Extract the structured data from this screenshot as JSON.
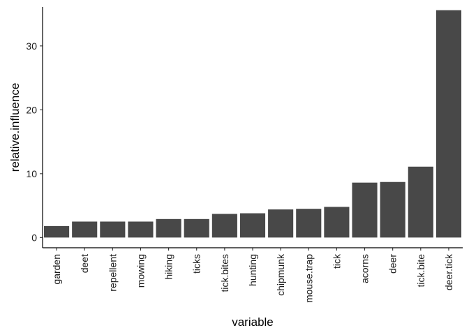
{
  "chart_data": {
    "type": "bar",
    "xlabel": "variable",
    "ylabel": "relative.influence",
    "ylim": [
      -1.6,
      36.1
    ],
    "yticks": [
      0,
      10,
      20,
      30
    ],
    "grid": false,
    "bar_color": "#484848",
    "categories": [
      "garden",
      "deet",
      "repellent",
      "mowing",
      "hiking",
      "ticks",
      "tick.bites",
      "hunting",
      "chipmunk",
      "mouse.trap",
      "tick",
      "acorns",
      "deer",
      "tick.bite",
      "deer.tick"
    ],
    "values": [
      1.8,
      2.5,
      2.5,
      2.5,
      2.9,
      2.9,
      3.7,
      3.8,
      4.4,
      4.5,
      4.8,
      8.6,
      8.7,
      11.1,
      35.6
    ]
  }
}
